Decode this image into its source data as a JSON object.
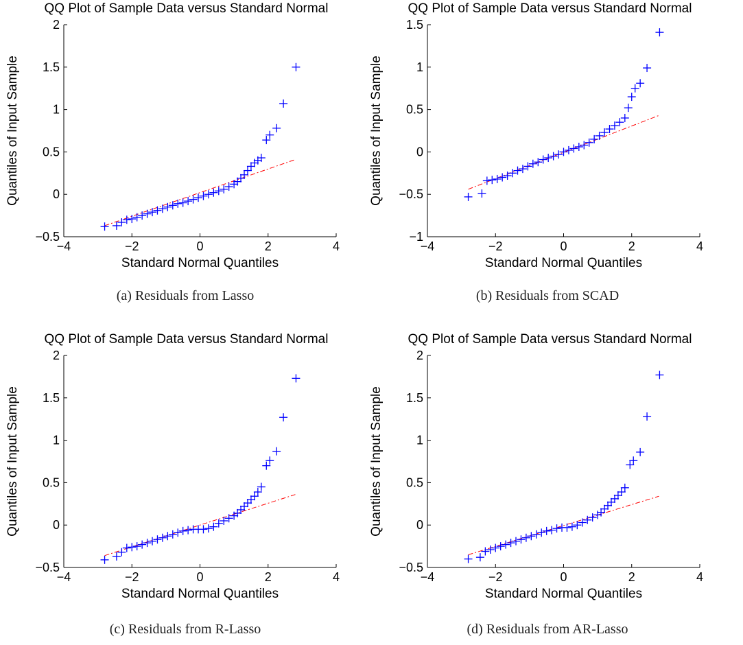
{
  "colors": {
    "marker": "#0000ff",
    "reference_line": "#ff0000",
    "axes": "#000000"
  },
  "captions": [
    "(a) Residuals from Lasso",
    "(b) Residuals from SCAD",
    "(c) Residuals from R-Lasso",
    "(d) Residuals from AR-Lasso"
  ],
  "chart_data": [
    {
      "type": "scatter",
      "title": "QQ Plot of Sample Data versus Standard Normal",
      "xlabel": "Standard Normal Quantiles",
      "ylabel": "Quantiles of Input Sample",
      "xlim": [
        -4,
        4
      ],
      "ylim": [
        -0.5,
        2
      ],
      "xticks": [
        -4,
        -2,
        0,
        2,
        4
      ],
      "xtick_labels": [
        "−4",
        "−2",
        "0",
        "2",
        "4"
      ],
      "yticks": [
        -0.5,
        0,
        0.5,
        1,
        1.5,
        2
      ],
      "ytick_labels": [
        "−0.5",
        "0",
        "0.5",
        "1",
        "1.5",
        "2"
      ],
      "marker": "+",
      "grid": false,
      "reference_line": {
        "style": "dash-dot",
        "x": [
          -2.8,
          2.8
        ],
        "y": [
          -0.37,
          0.41
        ]
      },
      "series": [
        {
          "x": [
            -2.8,
            -2.45,
            -2.3,
            -2.15,
            -2.0,
            -1.85,
            -1.7,
            -1.55,
            -1.4,
            -1.25,
            -1.1,
            -0.95,
            -0.8,
            -0.65,
            -0.5,
            -0.35,
            -0.2,
            -0.05,
            0.1,
            0.25,
            0.4,
            0.55,
            0.7,
            0.85,
            1.0,
            1.1,
            1.2,
            1.3,
            1.4,
            1.5,
            1.6,
            1.7,
            1.8,
            1.95,
            2.05,
            2.25,
            2.45,
            2.82
          ],
          "y": [
            -0.38,
            -0.37,
            -0.33,
            -0.3,
            -0.29,
            -0.27,
            -0.25,
            -0.23,
            -0.21,
            -0.19,
            -0.17,
            -0.15,
            -0.13,
            -0.11,
            -0.1,
            -0.08,
            -0.06,
            -0.04,
            -0.02,
            0.0,
            0.02,
            0.04,
            0.06,
            0.09,
            0.12,
            0.15,
            0.19,
            0.23,
            0.28,
            0.33,
            0.37,
            0.4,
            0.43,
            0.64,
            0.7,
            0.78,
            1.07,
            1.5
          ]
        }
      ]
    },
    {
      "type": "scatter",
      "title": "QQ Plot of Sample Data versus Standard Normal",
      "xlabel": "Standard Normal Quantiles",
      "ylabel": "Quantiles of Input Sample",
      "xlim": [
        -4,
        4
      ],
      "ylim": [
        -1,
        1.5
      ],
      "xticks": [
        -4,
        -2,
        0,
        2,
        4
      ],
      "xtick_labels": [
        "−4",
        "−2",
        "0",
        "2",
        "4"
      ],
      "yticks": [
        -1,
        -0.5,
        0,
        0.5,
        1,
        1.5
      ],
      "ytick_labels": [
        "−1",
        "−0.5",
        "0",
        "0.5",
        "1",
        "1.5"
      ],
      "marker": "+",
      "grid": false,
      "reference_line": {
        "style": "dash-dot",
        "x": [
          -2.8,
          2.8
        ],
        "y": [
          -0.44,
          0.43
        ]
      },
      "series": [
        {
          "x": [
            -2.8,
            -2.4,
            -2.25,
            -2.1,
            -1.95,
            -1.8,
            -1.65,
            -1.5,
            -1.35,
            -1.2,
            -1.05,
            -0.9,
            -0.75,
            -0.6,
            -0.45,
            -0.3,
            -0.15,
            0.0,
            0.15,
            0.3,
            0.45,
            0.6,
            0.75,
            0.9,
            1.05,
            1.2,
            1.35,
            1.5,
            1.65,
            1.8,
            1.9,
            2.0,
            2.1,
            2.25,
            2.45,
            2.82
          ],
          "y": [
            -0.53,
            -0.49,
            -0.34,
            -0.33,
            -0.32,
            -0.3,
            -0.28,
            -0.25,
            -0.22,
            -0.2,
            -0.17,
            -0.14,
            -0.12,
            -0.09,
            -0.07,
            -0.05,
            -0.03,
            0.0,
            0.02,
            0.04,
            0.06,
            0.08,
            0.11,
            0.15,
            0.19,
            0.23,
            0.27,
            0.31,
            0.35,
            0.4,
            0.52,
            0.65,
            0.75,
            0.81,
            0.99,
            1.41
          ]
        }
      ]
    },
    {
      "type": "scatter",
      "title": "QQ Plot of Sample Data versus Standard Normal",
      "xlabel": "Standard Normal Quantiles",
      "ylabel": "Quantiles of Input Sample",
      "xlim": [
        -4,
        4
      ],
      "ylim": [
        -0.5,
        2
      ],
      "xticks": [
        -4,
        -2,
        0,
        2,
        4
      ],
      "xtick_labels": [
        "−4",
        "−2",
        "0",
        "2",
        "4"
      ],
      "yticks": [
        -0.5,
        0,
        0.5,
        1,
        1.5,
        2
      ],
      "ytick_labels": [
        "−0.5",
        "0",
        "0.5",
        "1",
        "1.5",
        "2"
      ],
      "marker": "+",
      "grid": false,
      "reference_line": {
        "style": "dash-dot",
        "x": [
          -2.8,
          2.8
        ],
        "y": [
          -0.36,
          0.36
        ]
      },
      "series": [
        {
          "x": [
            -2.8,
            -2.45,
            -2.3,
            -2.15,
            -2.0,
            -1.85,
            -1.7,
            -1.55,
            -1.4,
            -1.25,
            -1.1,
            -0.95,
            -0.8,
            -0.65,
            -0.5,
            -0.35,
            -0.2,
            -0.05,
            0.1,
            0.25,
            0.4,
            0.55,
            0.7,
            0.85,
            1.0,
            1.1,
            1.2,
            1.3,
            1.4,
            1.5,
            1.6,
            1.7,
            1.8,
            1.95,
            2.05,
            2.25,
            2.45,
            2.82
          ],
          "y": [
            -0.41,
            -0.37,
            -0.32,
            -0.27,
            -0.26,
            -0.25,
            -0.23,
            -0.21,
            -0.19,
            -0.17,
            -0.15,
            -0.13,
            -0.11,
            -0.09,
            -0.07,
            -0.06,
            -0.05,
            -0.05,
            -0.05,
            -0.04,
            -0.02,
            0.02,
            0.05,
            0.08,
            0.11,
            0.14,
            0.18,
            0.22,
            0.26,
            0.3,
            0.34,
            0.39,
            0.45,
            0.7,
            0.76,
            0.87,
            1.27,
            1.73
          ]
        }
      ]
    },
    {
      "type": "scatter",
      "title": "QQ Plot of Sample Data versus Standard Normal",
      "xlabel": "Standard Normal Quantiles",
      "ylabel": "Quantiles of Input Sample",
      "xlim": [
        -4,
        4
      ],
      "ylim": [
        -0.5,
        2
      ],
      "xticks": [
        -4,
        -2,
        0,
        2,
        4
      ],
      "xtick_labels": [
        "−4",
        "−2",
        "0",
        "2",
        "4"
      ],
      "yticks": [
        -0.5,
        0,
        0.5,
        1,
        1.5,
        2
      ],
      "ytick_labels": [
        "−0.5",
        "0",
        "0.5",
        "1",
        "1.5",
        "2"
      ],
      "marker": "+",
      "grid": false,
      "reference_line": {
        "style": "dash-dot",
        "x": [
          -2.8,
          2.8
        ],
        "y": [
          -0.35,
          0.34
        ]
      },
      "series": [
        {
          "x": [
            -2.8,
            -2.45,
            -2.3,
            -2.15,
            -2.0,
            -1.85,
            -1.7,
            -1.55,
            -1.4,
            -1.25,
            -1.1,
            -0.95,
            -0.8,
            -0.65,
            -0.5,
            -0.35,
            -0.2,
            -0.05,
            0.1,
            0.25,
            0.4,
            0.55,
            0.7,
            0.85,
            1.0,
            1.1,
            1.2,
            1.3,
            1.4,
            1.5,
            1.6,
            1.7,
            1.8,
            1.95,
            2.05,
            2.25,
            2.45,
            2.82
          ],
          "y": [
            -0.4,
            -0.38,
            -0.31,
            -0.29,
            -0.27,
            -0.25,
            -0.23,
            -0.21,
            -0.19,
            -0.17,
            -0.15,
            -0.13,
            -0.11,
            -0.09,
            -0.07,
            -0.06,
            -0.04,
            -0.03,
            -0.03,
            -0.02,
            0.0,
            0.03,
            0.06,
            0.09,
            0.12,
            0.15,
            0.19,
            0.23,
            0.27,
            0.31,
            0.35,
            0.39,
            0.44,
            0.71,
            0.76,
            0.86,
            1.28,
            1.77
          ]
        }
      ]
    }
  ]
}
